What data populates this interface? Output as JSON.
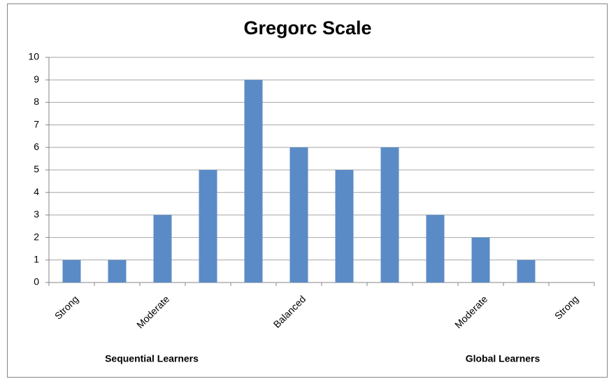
{
  "chart_data": {
    "type": "bar",
    "title": "Gregorc Scale",
    "categories": [
      "Strong",
      null,
      "Moderate",
      null,
      null,
      "Balanced",
      null,
      null,
      null,
      "Moderate",
      null,
      "Strong"
    ],
    "values": [
      1,
      1,
      3,
      5,
      9,
      6,
      5,
      6,
      3,
      2,
      1,
      0
    ],
    "color": "#5b8bc6",
    "ylim": [
      0,
      10
    ],
    "yticks": [
      0,
      1,
      2,
      3,
      4,
      5,
      6,
      7,
      8,
      9,
      10
    ],
    "grid": true,
    "annotations": [
      "Sequential Learners",
      "Global Learners"
    ]
  }
}
